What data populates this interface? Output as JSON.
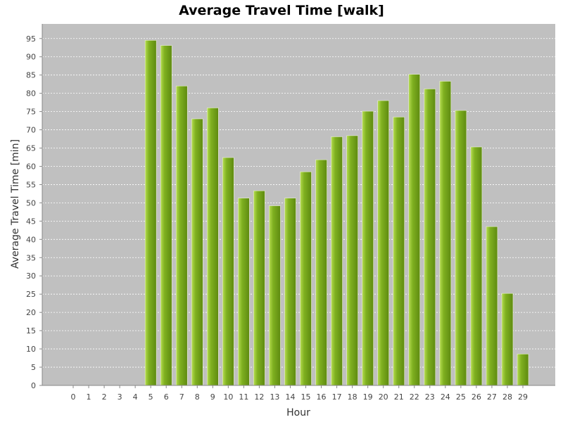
{
  "chart_data": {
    "type": "bar",
    "title": "Average Travel Time [walk]",
    "xlabel": "Hour",
    "ylabel": "Average Travel Time [min]",
    "categories": [
      "0",
      "1",
      "2",
      "3",
      "4",
      "5",
      "6",
      "7",
      "8",
      "9",
      "10",
      "11",
      "12",
      "13",
      "14",
      "15",
      "16",
      "17",
      "18",
      "19",
      "20",
      "21",
      "22",
      "23",
      "24",
      "25",
      "26",
      "27",
      "28",
      "29"
    ],
    "values": [
      0,
      0,
      0,
      0,
      0,
      94.5,
      93.1,
      82.0,
      73.0,
      76.0,
      62.4,
      51.3,
      53.3,
      49.2,
      51.3,
      58.5,
      61.8,
      68.1,
      68.4,
      75.1,
      78.0,
      73.5,
      85.2,
      81.2,
      83.3,
      75.3,
      65.3,
      43.5,
      25.2,
      8.6
    ],
    "yticks": [
      0,
      5,
      10,
      15,
      20,
      25,
      30,
      35,
      40,
      45,
      50,
      55,
      60,
      65,
      70,
      75,
      80,
      85,
      90,
      95
    ],
    "ylim": [
      0,
      99
    ],
    "grid": true,
    "colors": {
      "plot_background": "#c0c0c0",
      "bar": "#7fb020",
      "bar_highlight": "#b5dc50",
      "bar_shadow": "#5e8a10",
      "grid": "#ffffff"
    }
  }
}
